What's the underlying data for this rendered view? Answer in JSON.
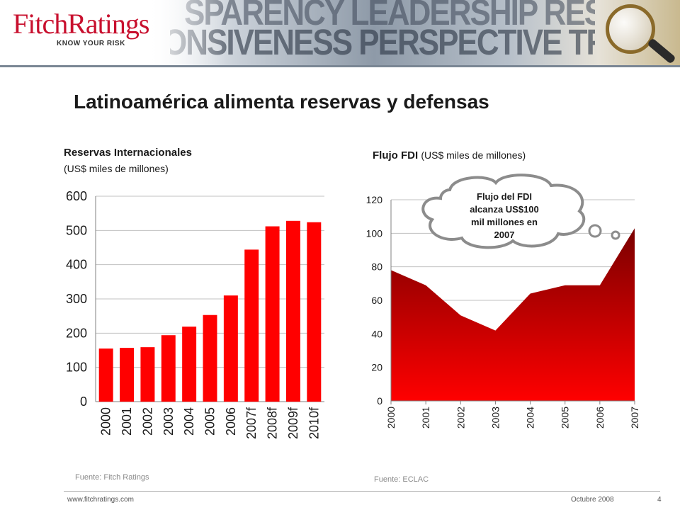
{
  "header": {
    "logo_text_a": "Fitch",
    "logo_text_b": "Ratings",
    "tagline": "KNOW YOUR RISK",
    "banner_line_1": "SPARENCY LEADERSHIP RESPONSIVENESS",
    "banner_line_2": "ONSIVENESS PERSPECTIVE TRANSPARENCY LE",
    "brand_color": "#c8102e"
  },
  "slide": {
    "title": "Latinoamérica alimenta reservas y defensas"
  },
  "left_chart": {
    "title": "Reservas Internacionales",
    "subtitle": "(US$ miles de millones)",
    "source": "Fuente: Fitch Ratings"
  },
  "right_chart": {
    "title_bold": "Flujo FDI",
    "title_light": "(US$ miles de millones)",
    "source": "Fuente: ECLAC",
    "callout_lines": [
      "Flujo del FDI",
      "alcanza US$100",
      "mil millones en",
      "2007"
    ]
  },
  "chart_data": [
    {
      "type": "bar",
      "categories": [
        "2000",
        "2001",
        "2002",
        "2003",
        "2004",
        "2005",
        "2006",
        "2007f",
        "2008f",
        "2009f",
        "2010f"
      ],
      "values": [
        155,
        157,
        159,
        194,
        219,
        253,
        310,
        444,
        512,
        528,
        524
      ],
      "ylim": [
        0,
        600
      ],
      "yticks": [
        "0",
        "100",
        "200",
        "300",
        "400",
        "500",
        "600"
      ],
      "grid": true,
      "color": "#ff0000"
    },
    {
      "type": "area",
      "categories": [
        "2000",
        "2001",
        "2002",
        "2003",
        "2004",
        "2005",
        "2006",
        "2007"
      ],
      "values": [
        78,
        69,
        51,
        42,
        64,
        69,
        69,
        103
      ],
      "ylim": [
        0,
        120
      ],
      "yticks": [
        "0",
        "20",
        "40",
        "60",
        "80",
        "100",
        "120"
      ],
      "grid": true,
      "color_top": "#7a0000",
      "color_bottom": "#ff0000"
    }
  ],
  "footer": {
    "url": "www.fitchratings.com",
    "date": "Octubre 2008",
    "page": "4"
  }
}
